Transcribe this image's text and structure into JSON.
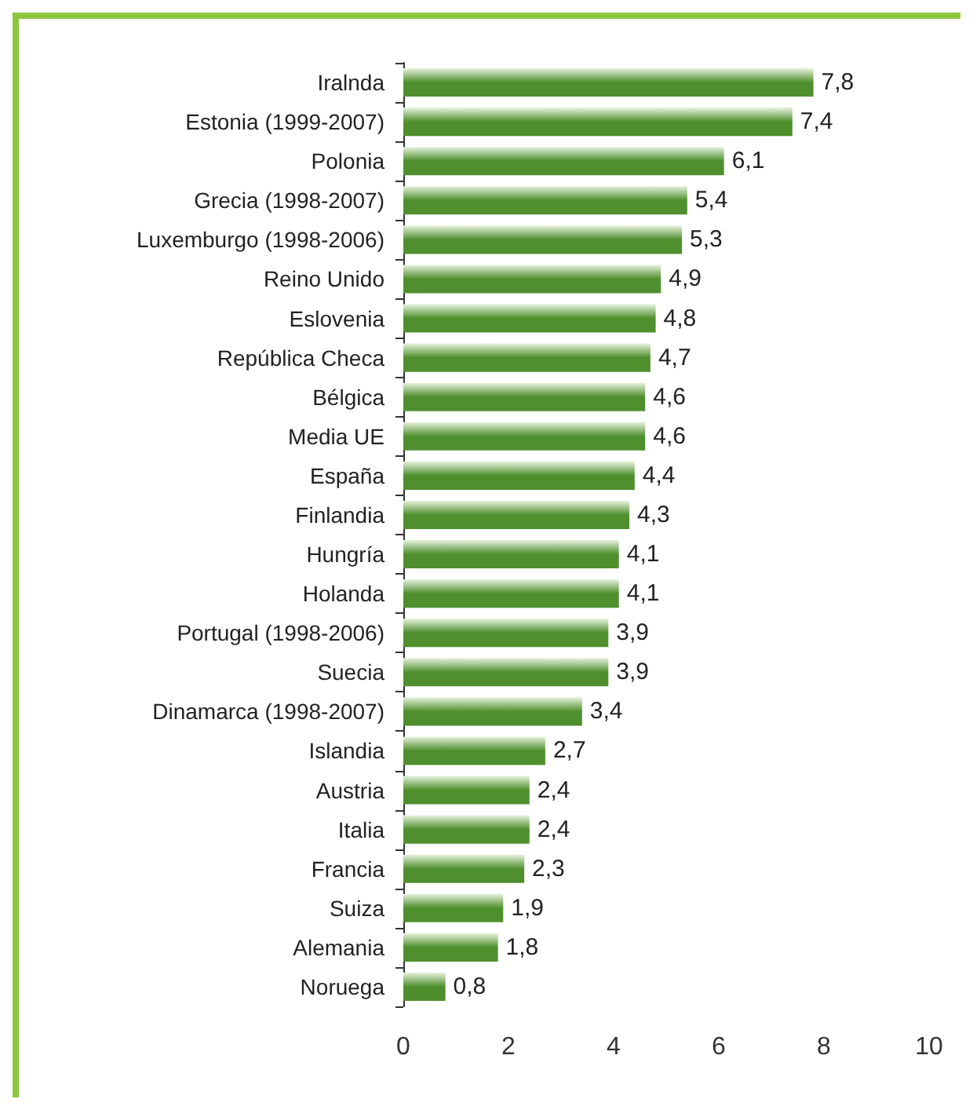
{
  "chart_data": {
    "type": "bar",
    "orientation": "horizontal",
    "categories": [
      "Iralnda",
      "Estonia (1999-2007)",
      "Polonia",
      "Grecia (1998-2007)",
      "Luxemburgo (1998-2006)",
      "Reino Unido",
      "Eslovenia",
      "República Checa",
      "Bélgica",
      "Media UE",
      "España",
      "Finlandia",
      "Hungría",
      "Holanda",
      "Portugal (1998-2006)",
      "Suecia",
      "Dinamarca (1998-2007)",
      "Islandia",
      "Austria",
      "Italia",
      "Francia",
      "Suiza",
      "Alemania",
      "Noruega"
    ],
    "values": [
      7.8,
      7.4,
      6.1,
      5.4,
      5.3,
      4.9,
      4.8,
      4.7,
      4.6,
      4.6,
      4.4,
      4.3,
      4.1,
      4.1,
      3.9,
      3.9,
      3.4,
      2.7,
      2.4,
      2.4,
      2.3,
      1.9,
      1.8,
      0.8
    ],
    "value_labels": [
      "7,8",
      "7,4",
      "6,1",
      "5,4",
      "5,3",
      "4,9",
      "4,8",
      "4,7",
      "4,6",
      "4,6",
      "4,4",
      "4,3",
      "4,1",
      "4,1",
      "3,9",
      "3,9",
      "3,4",
      "2,7",
      "2,4",
      "2,4",
      "2,3",
      "1,9",
      "1,8",
      "0,8"
    ],
    "color": "#4f8f2e",
    "xlim": [
      0,
      10
    ],
    "xticks": [
      0,
      2,
      4,
      6,
      8,
      10
    ],
    "grid": false
  }
}
